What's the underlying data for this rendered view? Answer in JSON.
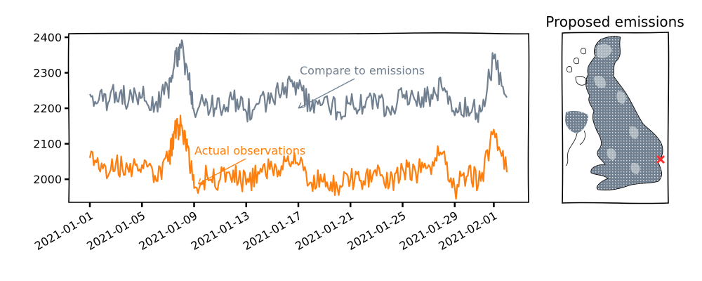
{
  "colors": {
    "predicted": "#708090",
    "observed": "#ff7f0e",
    "land": "#708090",
    "land_light": "#dfe3e8",
    "marker": "#ff2a2a",
    "frame": "#000000"
  },
  "chart_data": [
    {
      "type": "line",
      "title": "",
      "xlabel": "",
      "ylabel": "",
      "x_range": [
        "2021-01-01",
        "2021-02-02"
      ],
      "ylim": [
        1935,
        2410
      ],
      "y_ticks": [
        2000,
        2100,
        2200,
        2300,
        2400
      ],
      "x_ticks": [
        "2021-01-01",
        "2021-01-05",
        "2021-01-09",
        "2021-01-13",
        "2021-01-17",
        "2021-01-21",
        "2021-01-25",
        "2021-01-29",
        "2021-02-01"
      ],
      "grid": false,
      "legend": "none",
      "series": [
        {
          "color": "#708090",
          "x": [
            "2021-01-01",
            "2021-01-02",
            "2021-01-03",
            "2021-01-04",
            "2021-01-05",
            "2021-01-06",
            "2021-01-07",
            "2021-01-07 12:00",
            "2021-01-08",
            "2021-01-08 12:00",
            "2021-01-09",
            "2021-01-10",
            "2021-01-11",
            "2021-01-12",
            "2021-01-13",
            "2021-01-14",
            "2021-01-15",
            "2021-01-16",
            "2021-01-17",
            "2021-01-18",
            "2021-01-19",
            "2021-01-20",
            "2021-01-21",
            "2021-01-22",
            "2021-01-23",
            "2021-01-24",
            "2021-01-25",
            "2021-01-26",
            "2021-01-27",
            "2021-01-28",
            "2021-01-29",
            "2021-01-30",
            "2021-01-31",
            "2021-02-01",
            "2021-02-02"
          ],
          "values": [
            2240,
            2220,
            2245,
            2225,
            2230,
            2210,
            2250,
            2330,
            2370,
            2300,
            2190,
            2215,
            2200,
            2225,
            2190,
            2215,
            2230,
            2260,
            2255,
            2200,
            2230,
            2190,
            2210,
            2205,
            2215,
            2190,
            2230,
            2220,
            2235,
            2260,
            2180,
            2205,
            2190,
            2340,
            2230
          ]
        },
        {
          "color": "#ff7f0e",
          "x": [
            "2021-01-01",
            "2021-01-02",
            "2021-01-03",
            "2021-01-04",
            "2021-01-05",
            "2021-01-06",
            "2021-01-07",
            "2021-01-07 12:00",
            "2021-01-08",
            "2021-01-08 12:00",
            "2021-01-09",
            "2021-01-10",
            "2021-01-11",
            "2021-01-12",
            "2021-01-13",
            "2021-01-14",
            "2021-01-15",
            "2021-01-16",
            "2021-01-17",
            "2021-01-18",
            "2021-01-19",
            "2021-01-20",
            "2021-01-21",
            "2021-01-22",
            "2021-01-23",
            "2021-01-24",
            "2021-01-25",
            "2021-01-26",
            "2021-01-27",
            "2021-01-28",
            "2021-01-29",
            "2021-01-30",
            "2021-01-31",
            "2021-02-01",
            "2021-02-02"
          ],
          "values": [
            2060,
            2030,
            2045,
            2020,
            2040,
            2010,
            2050,
            2130,
            2150,
            2090,
            1975,
            2010,
            2000,
            2025,
            1985,
            2015,
            2030,
            2050,
            2040,
            1990,
            2015,
            1975,
            2000,
            1995,
            2010,
            1985,
            2030,
            2020,
            2040,
            2070,
            1975,
            2010,
            1995,
            2140,
            2020
          ]
        }
      ],
      "annotations": [
        {
          "text": "Compare to emissions",
          "color": "#708090",
          "arrow_to": [
            "2021-01-17",
            2200
          ]
        },
        {
          "text": "Actual observations",
          "color": "#ff7f0e",
          "arrow_to": [
            "2021-01-09",
            1975
          ]
        }
      ]
    },
    {
      "type": "map",
      "title": "Proposed emissions",
      "region": "Great Britain and Ireland",
      "colormap": [
        "#dfe3e8",
        "#708090"
      ],
      "marker": {
        "symbol": "x",
        "color": "#ff2a2a",
        "location": "eastern England"
      }
    }
  ]
}
